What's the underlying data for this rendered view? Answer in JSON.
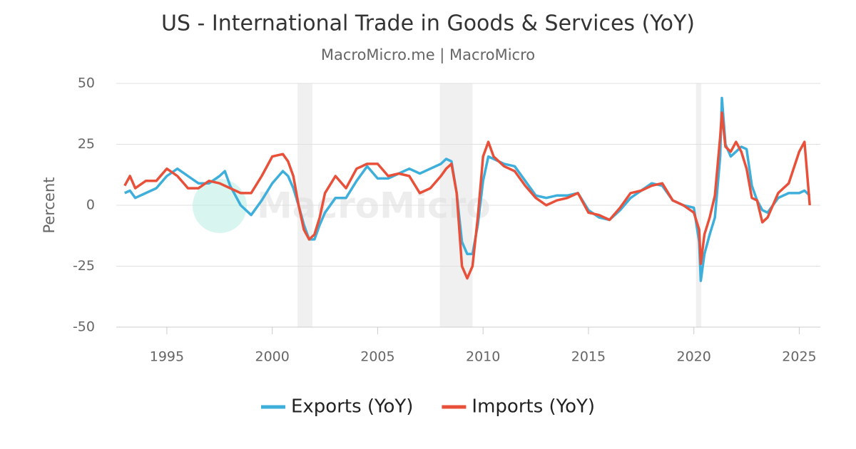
{
  "chart_data": {
    "type": "line",
    "title": "US - International Trade in Goods & Services (YoY)",
    "subtitle": "MacroMicro.me | MacroMicro",
    "watermark": "MacroMicro",
    "y_label": "Percent",
    "xlim": [
      1992.6,
      2026
    ],
    "xticks": [
      1995,
      2000,
      2005,
      2010,
      2015,
      2020,
      2025
    ],
    "ylim": [
      -50,
      50
    ],
    "yticks": [
      -50,
      -25,
      0,
      25,
      50
    ],
    "grid": true,
    "legend": "bottom",
    "shaded_periods": [
      [
        2001.2,
        2001.9
      ],
      [
        2007.95,
        2009.5
      ],
      [
        2020.1,
        2020.35
      ]
    ],
    "x": [
      1993,
      1993.25,
      1993.5,
      1994,
      1994.5,
      1995,
      1995.5,
      1996,
      1996.5,
      1997,
      1997.5,
      1997.75,
      1998,
      1998.5,
      1999,
      1999.5,
      2000,
      2000.5,
      2000.75,
      2001,
      2001.25,
      2001.5,
      2001.75,
      2002,
      2002.25,
      2002.5,
      2003,
      2003.5,
      2004,
      2004.5,
      2005,
      2005.5,
      2006,
      2006.5,
      2007,
      2007.5,
      2008,
      2008.25,
      2008.5,
      2008.75,
      2009,
      2009.25,
      2009.5,
      2009.75,
      2010,
      2010.25,
      2010.5,
      2011,
      2011.5,
      2012,
      2012.5,
      2013,
      2013.5,
      2014,
      2014.5,
      2015,
      2015.5,
      2016,
      2016.5,
      2017,
      2017.5,
      2018,
      2018.5,
      2019,
      2019.5,
      2020,
      2020.25,
      2020.33,
      2020.5,
      2020.75,
      2021,
      2021.25,
      2021.33,
      2021.5,
      2021.75,
      2022,
      2022.25,
      2022.5,
      2022.75,
      2023,
      2023.25,
      2023.5,
      2024,
      2024.5,
      2025,
      2025.25,
      2025.5
    ],
    "series": [
      {
        "name": "Exports (YoY)",
        "color": "#3eaedb",
        "values": [
          5,
          6,
          3,
          5,
          7,
          12,
          15,
          12,
          9,
          9,
          12,
          14,
          8,
          0,
          -4,
          2,
          9,
          14,
          12,
          7,
          0,
          -8,
          -14,
          -14,
          -8,
          -3,
          3,
          3,
          10,
          16,
          11,
          11,
          13,
          15,
          13,
          15,
          17,
          19,
          18,
          5,
          -15,
          -20,
          -20,
          -8,
          10,
          20,
          19,
          17,
          16,
          10,
          4,
          3,
          4,
          4,
          5,
          -2,
          -5,
          -6,
          -2,
          3,
          6,
          9,
          8,
          2,
          0,
          -1,
          -15,
          -31,
          -20,
          -12,
          -5,
          20,
          44,
          25,
          20,
          22,
          24,
          23,
          8,
          2,
          -2,
          -3,
          3,
          5,
          5,
          6,
          4
        ]
      },
      {
        "name": "Imports (YoY)",
        "color": "#e8503a",
        "values": [
          8,
          12,
          7,
          10,
          10,
          15,
          12,
          7,
          7,
          10,
          9,
          8,
          7,
          5,
          5,
          12,
          20,
          21,
          18,
          12,
          0,
          -10,
          -14,
          -12,
          -5,
          5,
          12,
          7,
          15,
          17,
          17,
          12,
          13,
          12,
          5,
          7,
          12,
          15,
          17,
          5,
          -25,
          -30,
          -25,
          -5,
          20,
          26,
          20,
          16,
          14,
          8,
          3,
          0,
          2,
          3,
          5,
          -3,
          -4,
          -6,
          -1,
          5,
          6,
          8,
          9,
          2,
          0,
          -3,
          -10,
          -24,
          -12,
          -5,
          4,
          28,
          38,
          24,
          22,
          26,
          22,
          15,
          3,
          2,
          -7,
          -5,
          5,
          9,
          22,
          26,
          0
        ]
      }
    ]
  }
}
